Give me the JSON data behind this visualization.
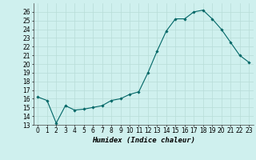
{
  "x": [
    0,
    1,
    2,
    3,
    4,
    5,
    6,
    7,
    8,
    9,
    10,
    11,
    12,
    13,
    14,
    15,
    16,
    17,
    18,
    19,
    20,
    21,
    22,
    23
  ],
  "y": [
    16.2,
    15.8,
    13.2,
    15.2,
    14.7,
    14.8,
    15.0,
    15.2,
    15.8,
    16.0,
    16.5,
    16.8,
    19.0,
    21.5,
    23.8,
    25.2,
    25.2,
    26.0,
    26.2,
    25.2,
    24.0,
    22.5,
    21.0,
    20.2
  ],
  "line_color": "#006666",
  "marker": "D",
  "marker_size": 1.8,
  "background_color": "#cff0ee",
  "grid_color": "#b8ddd8",
  "xlabel": "Humidex (Indice chaleur)",
  "ylim": [
    13,
    27
  ],
  "xlim": [
    -0.5,
    23.5
  ],
  "yticks": [
    13,
    14,
    15,
    16,
    17,
    18,
    19,
    20,
    21,
    22,
    23,
    24,
    25,
    26
  ],
  "xticks": [
    0,
    1,
    2,
    3,
    4,
    5,
    6,
    7,
    8,
    9,
    10,
    11,
    12,
    13,
    14,
    15,
    16,
    17,
    18,
    19,
    20,
    21,
    22,
    23
  ],
  "label_fontsize": 6.5,
  "tick_fontsize": 5.5
}
